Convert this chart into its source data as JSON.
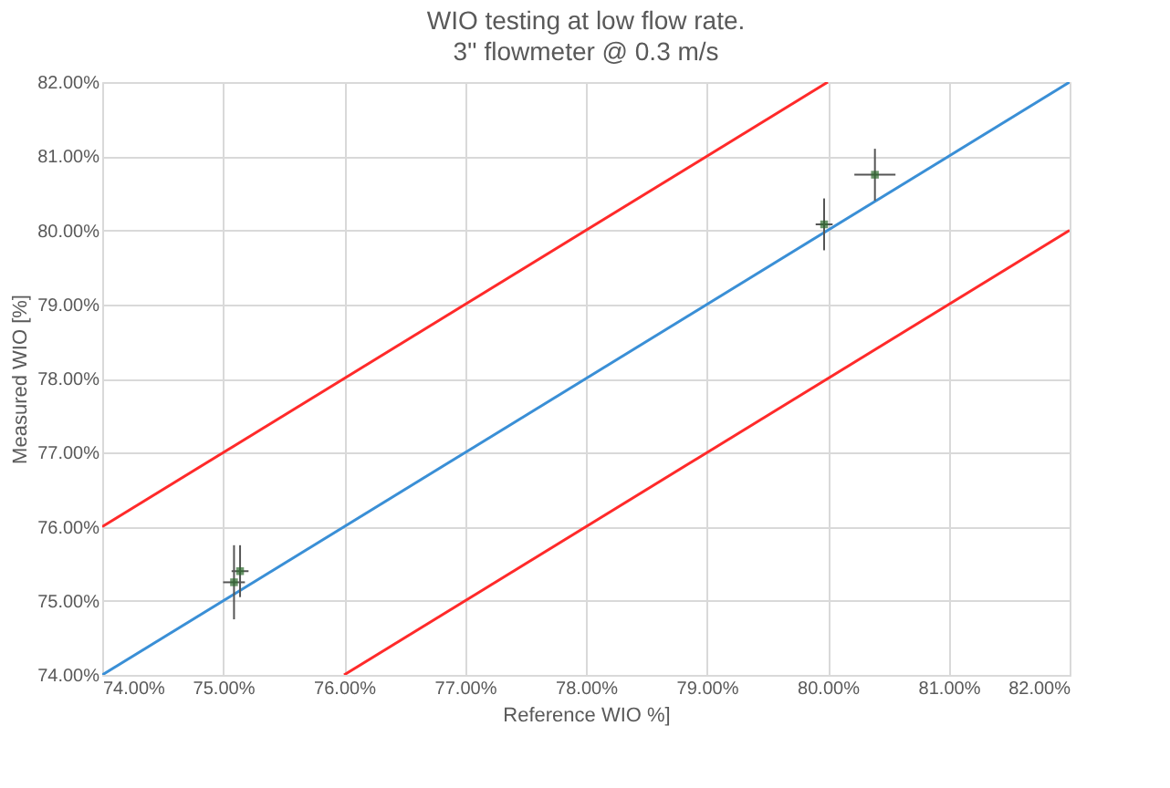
{
  "chart_data": {
    "type": "scatter",
    "title": "WIO testing at low flow rate.",
    "subtitle": "3'' flowmeter @ 0.3 m/s",
    "xlabel": "Reference WIO %]",
    "ylabel": "Measured WIO  [%]",
    "series": [
      {
        "color": "#2e6b2e",
        "marker": "square",
        "x": [
          75.09,
          75.14,
          79.97,
          80.39
        ],
        "values": [
          75.25,
          75.4,
          80.08,
          80.75
        ],
        "errors": [
          0.5,
          0.35,
          0.35,
          0.35
        ],
        "xerrors": [
          0.09,
          0.07,
          0.07,
          0.17
        ]
      },
      {
        "type": "line",
        "marker": "none",
        "color": "#3a8fd6",
        "x": [
          74,
          82
        ],
        "values": [
          74,
          82
        ]
      },
      {
        "type": "line",
        "marker": "none",
        "color": "#ff2a2a",
        "x": [
          74,
          80
        ],
        "values": [
          76,
          82
        ]
      },
      {
        "type": "line",
        "marker": "none",
        "color": "#ff2a2a",
        "x": [
          76,
          82
        ],
        "values": [
          74,
          80
        ]
      }
    ],
    "line_style": "solid",
    "grid": true,
    "xlim": [
      74,
      82
    ],
    "ylim": [
      74,
      82
    ],
    "xticks": [
      {
        "value": 74,
        "label": "74.00%"
      },
      {
        "value": 75,
        "label": "75.00%"
      },
      {
        "value": 76,
        "label": "76.00%"
      },
      {
        "value": 77,
        "label": "77.00%"
      },
      {
        "value": 78,
        "label": "78.00%"
      },
      {
        "value": 79,
        "label": "79.00%"
      },
      {
        "value": 80,
        "label": "80.00%"
      },
      {
        "value": 81,
        "label": "81.00%"
      },
      {
        "value": 82,
        "label": "82.00%"
      }
    ],
    "yticks": [
      {
        "value": 74,
        "label": "74.00%"
      },
      {
        "value": 75,
        "label": "75.00%"
      },
      {
        "value": 76,
        "label": "76.00%"
      },
      {
        "value": 77,
        "label": "77.00%"
      },
      {
        "value": 78,
        "label": "78.00%"
      },
      {
        "value": 79,
        "label": "79.00%"
      },
      {
        "value": 80,
        "label": "80.00%"
      },
      {
        "value": 81,
        "label": "81.00%"
      },
      {
        "value": 82,
        "label": "82.00%"
      }
    ]
  }
}
